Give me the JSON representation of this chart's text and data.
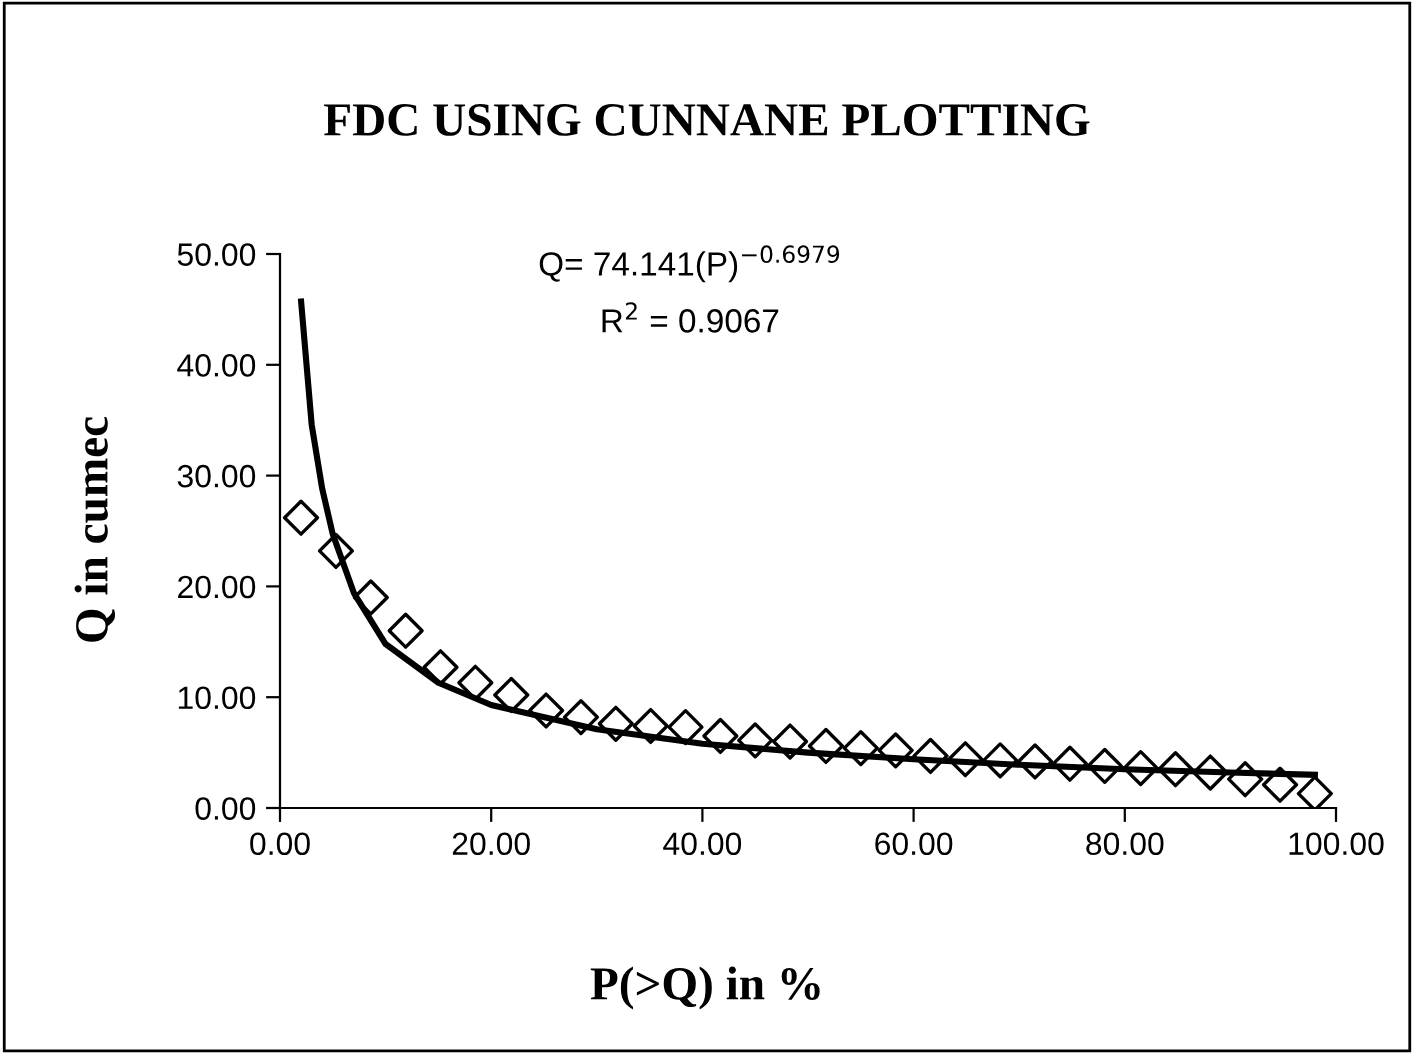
{
  "chart_data": {
    "type": "scatter",
    "title": "FDC USING CUNNANE PLOTTING",
    "xlabel": "P(>Q) in %",
    "ylabel": "Q in cumec",
    "series": [
      {
        "marker": "diamond",
        "color": "#000000",
        "x": [
          1.99,
          5.3,
          8.6,
          11.9,
          15.2,
          18.5,
          21.9,
          25.2,
          28.5,
          31.8,
          35.1,
          38.4,
          41.7,
          45.0,
          48.3,
          51.7,
          55.0,
          58.3,
          61.6,
          64.9,
          68.2,
          71.5,
          74.8,
          78.1,
          81.5,
          84.8,
          88.1,
          91.4,
          94.7,
          98.0
        ],
        "values": [
          26.2,
          23.2,
          19.0,
          16.0,
          12.7,
          11.3,
          10.2,
          8.8,
          8.2,
          7.6,
          7.4,
          7.3,
          6.5,
          6.1,
          6.0,
          5.6,
          5.4,
          5.2,
          4.7,
          4.4,
          4.3,
          4.2,
          4.0,
          3.8,
          3.6,
          3.5,
          3.2,
          2.6,
          2.1,
          1.3
        ]
      },
      {
        "type": "line",
        "color": "#000000",
        "line_style": "solid",
        "x": [
          2,
          3,
          4,
          5,
          7,
          10,
          15,
          20,
          30,
          40,
          50,
          60,
          70,
          80,
          90,
          98
        ],
        "values": [
          45.7,
          34.6,
          28.8,
          24.7,
          19.4,
          14.8,
          11.3,
          9.3,
          7.1,
          5.8,
          5.0,
          4.4,
          3.9,
          3.5,
          3.2,
          3.0
        ]
      }
    ],
    "annotations": [
      {
        "text": "Q= 74.141(P)$^{−0.6979}$"
      },
      {
        "text": "R$^{2}$ = 0.9067"
      }
    ],
    "xlim": [
      0,
      100
    ],
    "ylim": [
      0,
      50
    ],
    "xticks": [
      {
        "value": 0,
        "label": "0.00"
      },
      {
        "value": 20,
        "label": "20.00"
      },
      {
        "value": 40,
        "label": "40.00"
      },
      {
        "value": 60,
        "label": "60.00"
      },
      {
        "value": 80,
        "label": "80.00"
      },
      {
        "value": 100,
        "label": "100.00"
      }
    ],
    "yticks": [
      {
        "value": 0,
        "label": "0.00"
      },
      {
        "value": 10,
        "label": "10.00"
      },
      {
        "value": 20,
        "label": "20.00"
      },
      {
        "value": 30,
        "label": "30.00"
      },
      {
        "value": 40,
        "label": "40.00"
      },
      {
        "value": 50,
        "label": "50.00"
      }
    ],
    "grid": false,
    "legend": false
  }
}
